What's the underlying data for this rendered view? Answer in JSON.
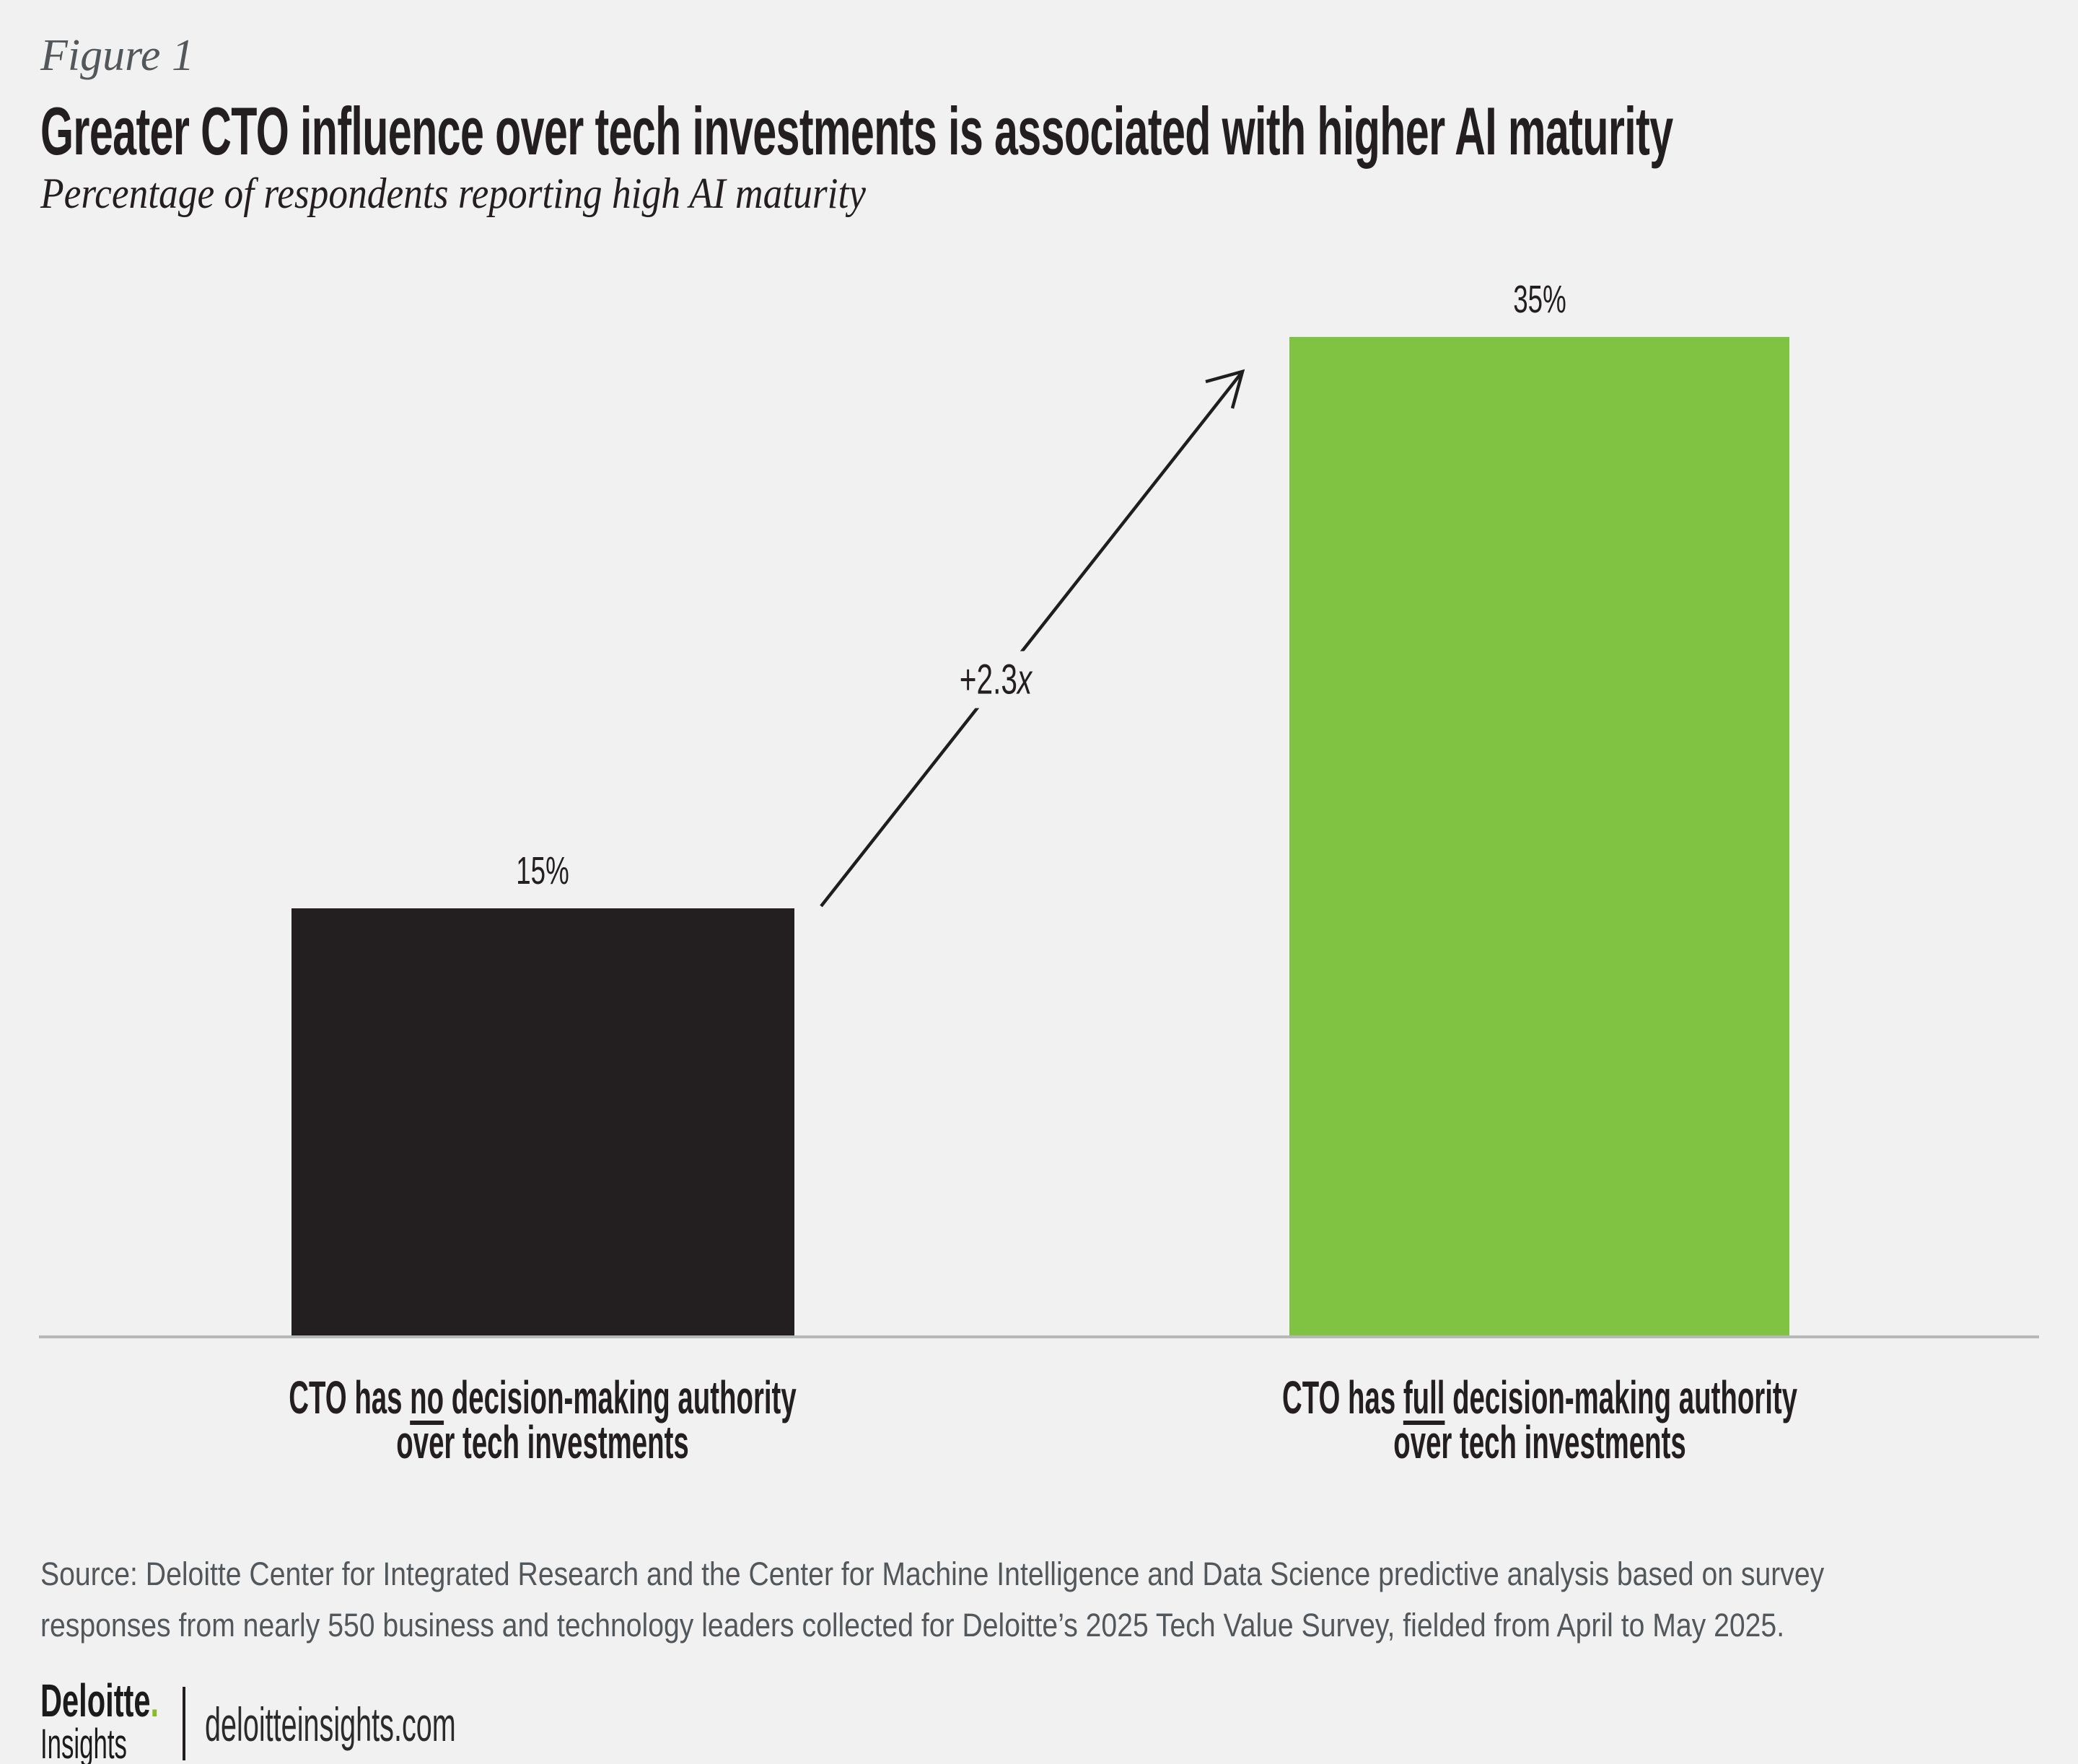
{
  "page": {
    "background": "#f0f1f0"
  },
  "header": {
    "figure_label": "Figure 1",
    "title": "Greater CTO influence over tech investments is associated with higher AI maturity",
    "subtitle": "Percentage of respondents reporting high AI maturity"
  },
  "chart_data": {
    "type": "bar",
    "categories": [
      "CTO has no decision-making authority over tech investments",
      "CTO has full decision-making authority over tech investments"
    ],
    "values": [
      15,
      35
    ],
    "unit": "%",
    "value_labels": [
      "15%",
      "35%"
    ],
    "annotation": "+2.3x",
    "bar_colors": [
      "#231f20",
      "#80c342"
    ],
    "ylim": [
      0,
      37
    ],
    "grid": false,
    "legend": false,
    "baseline_color": "#b6b7b7"
  },
  "bars": [
    {
      "value_label": "15%",
      "cat_pre": "CTO has ",
      "cat_underlined": "no",
      "cat_post": " decision-making authority",
      "cat_line2": "over tech investments",
      "color": "#231f20"
    },
    {
      "value_label": "35%",
      "cat_pre": "CTO has ",
      "cat_underlined": "full",
      "cat_post": " decision-making authority",
      "cat_line2": "over tech investments",
      "color": "#80c342"
    }
  ],
  "annotation": {
    "value": "+2.3",
    "suffix": "x"
  },
  "source": {
    "line1": "Source: Deloitte Center for Integrated Research and the Center for Machine Intelligence and Data Science predictive analysis based on survey",
    "line2": "responses from nearly 550 business and technology leaders collected for Deloitte’s 2025 Tech Value Survey, fielded from April to May 2025."
  },
  "footer": {
    "brand_top": "Deloitte",
    "brand_dot": ".",
    "brand_bottom": "Insights",
    "site": "deloitteinsights.com"
  },
  "colors": {
    "accent_green": "#80c342",
    "ink": "#231f20",
    "gray_text": "#54575a",
    "axis_line": "#b6b7b7",
    "brand_dot_green": "#86bc25"
  }
}
